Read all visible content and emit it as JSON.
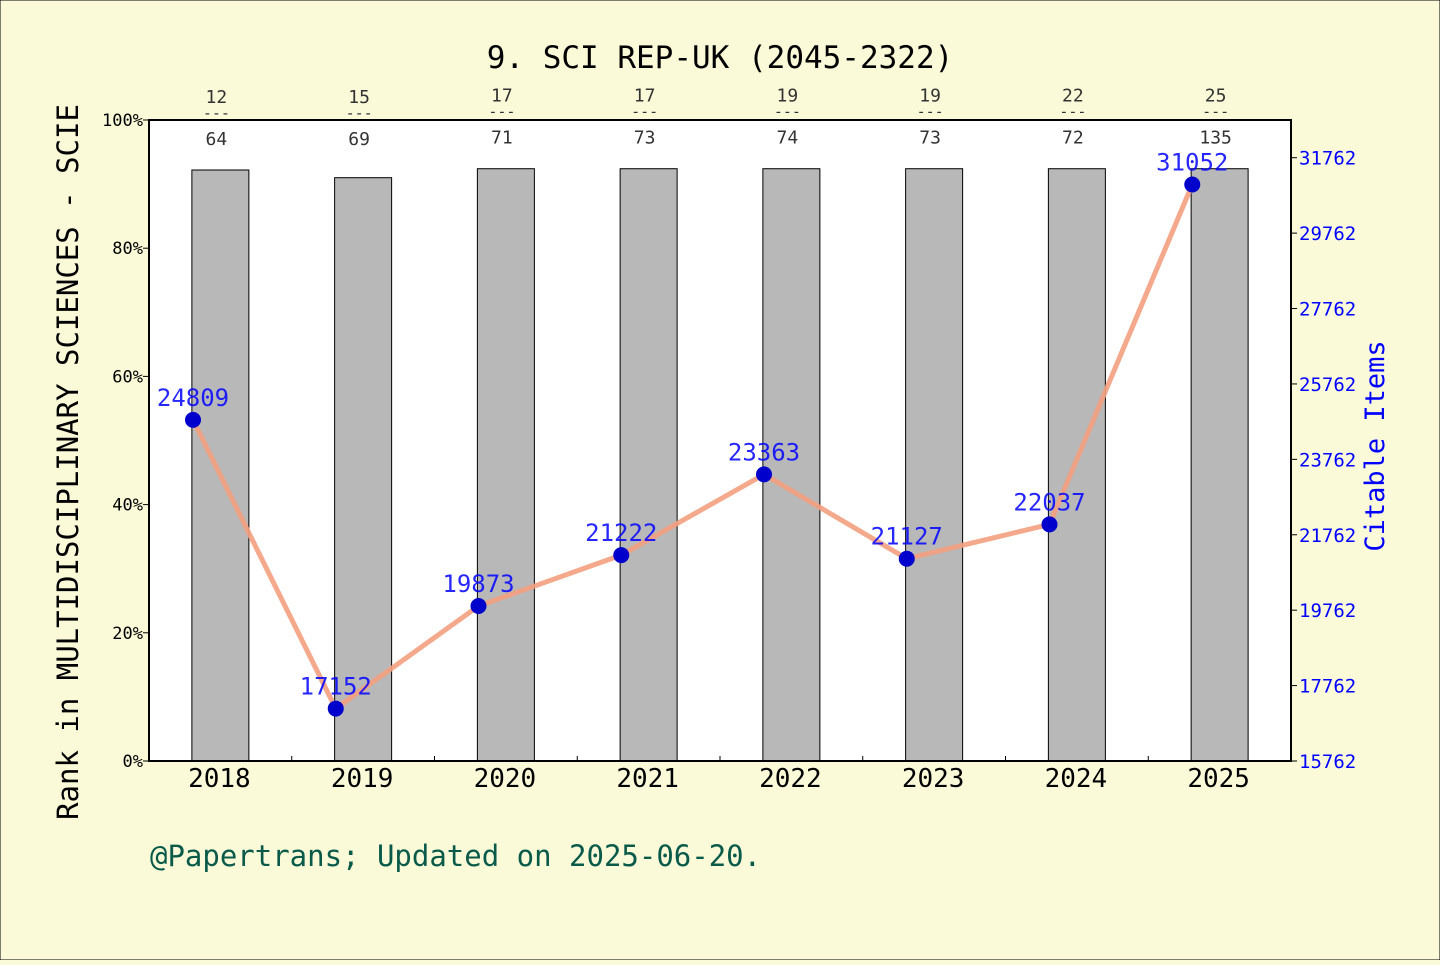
{
  "chart_data": {
    "type": "bar",
    "title": "9. SCI REP-UK (2045-2322)",
    "footer": "@Papertrans; Updated on 2025-06-20.",
    "categories": [
      "2018",
      "2019",
      "2020",
      "2021",
      "2022",
      "2023",
      "2024",
      "2025"
    ],
    "left_axis": {
      "label": "Rank in MULTIDISCIPLINARY SCIENCES - SCIE",
      "ylim": [
        0,
        100
      ],
      "ticks": [
        "0%",
        "20%",
        "40%",
        "60%",
        "80%",
        "100%"
      ]
    },
    "right_axis": {
      "label": "Citable Items",
      "ylim": [
        15762,
        32762
      ],
      "ticks": [
        "15762",
        "17762",
        "19762",
        "21762",
        "23762",
        "25762",
        "27762",
        "29762",
        "31762"
      ],
      "color": "#0000ff"
    },
    "series": [
      {
        "type": "bar",
        "axis": "left",
        "values": [
          92.2,
          91.0,
          92.4,
          92.4,
          92.4,
          92.4,
          92.4,
          92.4
        ],
        "rank": [
          "12",
          "15",
          "17",
          "17",
          "19",
          "19",
          "22",
          "25"
        ],
        "total": [
          "64",
          "69",
          "71",
          "73",
          "74",
          "73",
          "72",
          "135"
        ],
        "color": "#b8b8b8"
      },
      {
        "type": "line",
        "axis": "right",
        "values": [
          24809,
          17152,
          19873,
          21222,
          23363,
          21127,
          22037,
          31052
        ],
        "labels": [
          "24809",
          "17152",
          "19873",
          "21222",
          "23363",
          "21127",
          "22037",
          "31052"
        ],
        "line_color": "#f4a080",
        "marker_color": "#0000cc",
        "label_color": "#0000ff"
      }
    ],
    "grid": false,
    "rank_separator": "---"
  }
}
